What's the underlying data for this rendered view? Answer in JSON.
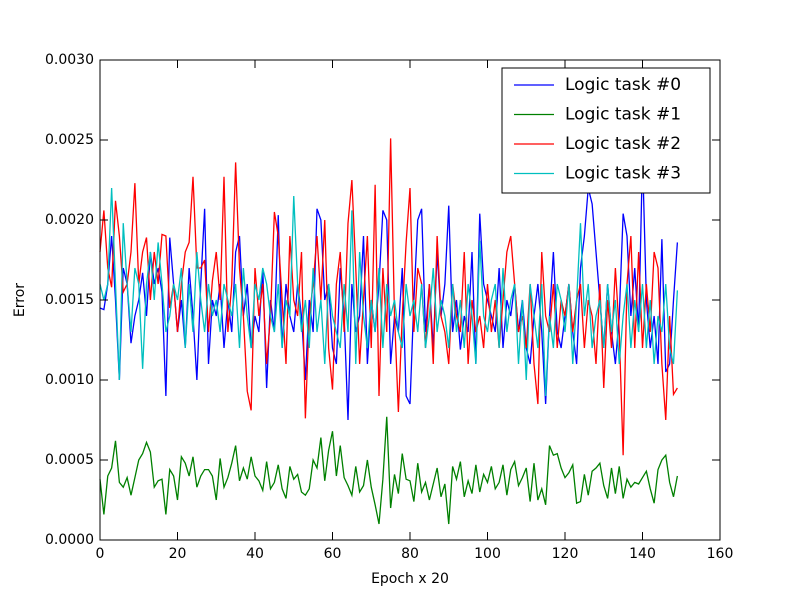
{
  "chart_data": {
    "type": "line",
    "xlabel": "Epoch x 20",
    "ylabel": "Error",
    "x": [
      0,
      1,
      2,
      3,
      4,
      5,
      6,
      7,
      8,
      9,
      10,
      11,
      12,
      13,
      14,
      15,
      16,
      17,
      18,
      19,
      20,
      21,
      22,
      23,
      24,
      25,
      26,
      27,
      28,
      29,
      30,
      31,
      32,
      33,
      34,
      35,
      36,
      37,
      38,
      39,
      40,
      41,
      42,
      43,
      44,
      45,
      46,
      47,
      48,
      49,
      50,
      51,
      52,
      53,
      54,
      55,
      56,
      57,
      58,
      59,
      60,
      61,
      62,
      63,
      64,
      65,
      66,
      67,
      68,
      69,
      70,
      71,
      72,
      73,
      74,
      75,
      76,
      77,
      78,
      79,
      80,
      81,
      82,
      83,
      84,
      85,
      86,
      87,
      88,
      89,
      90,
      91,
      92,
      93,
      94,
      95,
      96,
      97,
      98,
      99,
      100,
      101,
      102,
      103,
      104,
      105,
      106,
      107,
      108,
      109,
      110,
      111,
      112,
      113,
      114,
      115,
      116,
      117,
      118,
      119,
      120,
      121,
      122,
      123,
      124,
      125,
      126,
      127,
      128,
      129,
      130,
      131,
      132,
      133,
      134,
      135,
      136,
      137,
      138,
      139,
      140,
      141,
      142,
      143,
      144,
      145,
      146,
      147,
      148,
      149
    ],
    "series": [
      {
        "name": "Logic task #0",
        "color": "#0000ff",
        "values": [
          0.00145,
          0.00144,
          0.0016,
          0.0019,
          0.0015,
          0.001,
          0.0017,
          0.0016,
          0.00123,
          0.0014,
          0.0015,
          0.00167,
          0.0014,
          0.0018,
          0.0016,
          0.0017,
          0.00155,
          0.0009,
          0.00189,
          0.0016,
          0.0013,
          0.0015,
          0.0012,
          0.0017,
          0.0014,
          0.001,
          0.0016,
          0.00207,
          0.0011,
          0.0015,
          0.0014,
          0.0016,
          0.0012,
          0.0015,
          0.0013,
          0.0018,
          0.0019,
          0.0014,
          0.0016,
          0.0012,
          0.0014,
          0.0013,
          0.0017,
          0.00095,
          0.0015,
          0.0013,
          0.00203,
          0.0012,
          0.0016,
          0.0014,
          0.0013,
          0.0016,
          0.0014,
          0.001,
          0.0015,
          0.0013,
          0.00207,
          0.002,
          0.0015,
          0.0016,
          0.0012,
          0.0011,
          0.0017,
          0.0014,
          0.00075,
          0.0016,
          0.0013,
          0.0014,
          0.0019,
          0.0011,
          0.0015,
          0.0013,
          0.0016,
          0.00206,
          0.002,
          0.0011,
          0.0014,
          0.0013,
          0.0017,
          0.0009,
          0.00085,
          0.0015,
          0.002,
          0.00207,
          0.0013,
          0.0016,
          0.0012,
          0.0018,
          0.0014,
          0.0016,
          0.00209,
          0.0013,
          0.0015,
          0.00119,
          0.0014,
          0.0013,
          0.0018,
          0.0011,
          0.00204,
          0.0016,
          0.0015,
          0.0014,
          0.0013,
          0.0017,
          0.0012,
          0.0015,
          0.0014,
          0.0016,
          0.0013,
          0.0015,
          0.0012,
          0.0011,
          0.0014,
          0.0016,
          0.0013,
          0.00085,
          0.0014,
          0.0018,
          0.0013,
          0.0012,
          0.0014,
          0.0016,
          0.0013,
          0.0011,
          0.0017,
          0.0019,
          0.0022,
          0.0021,
          0.0018,
          0.0015,
          0.0012,
          0.0016,
          0.0013,
          0.0011,
          0.0014,
          0.00204,
          0.0019,
          0.0014,
          0.0017,
          0.0013,
          0.0024,
          0.0015,
          0.0012,
          0.0014,
          0.0011,
          0.00188,
          0.00105,
          0.0011,
          0.0015,
          0.00186
        ]
      },
      {
        "name": "Logic task #1",
        "color": "#008000",
        "values": [
          0.00038,
          0.00016,
          0.0004,
          0.00045,
          0.00062,
          0.00036,
          0.00033,
          0.00039,
          0.00028,
          0.00039,
          0.0005,
          0.00054,
          0.00061,
          0.00055,
          0.00033,
          0.00037,
          0.00038,
          0.00016,
          0.00044,
          0.0004,
          0.00025,
          0.00052,
          0.00048,
          0.0004,
          0.00052,
          0.00033,
          0.0004,
          0.00044,
          0.00044,
          0.0004,
          0.00025,
          0.00051,
          0.00033,
          0.00039,
          0.00048,
          0.00059,
          0.00037,
          0.00045,
          0.00038,
          0.00052,
          0.0004,
          0.00037,
          0.00031,
          0.00049,
          0.00032,
          0.00036,
          0.00047,
          0.00032,
          0.00026,
          0.00046,
          0.00038,
          0.00041,
          0.0003,
          0.00028,
          0.00032,
          0.0005,
          0.00045,
          0.00064,
          0.00037,
          0.00056,
          0.00068,
          0.0004,
          0.00059,
          0.00039,
          0.00034,
          0.00028,
          0.00046,
          0.0003,
          0.00034,
          0.0005,
          0.00033,
          0.00022,
          0.0001,
          0.00038,
          0.00077,
          0.0002,
          0.00041,
          0.00029,
          0.00054,
          0.00038,
          0.00037,
          0.00024,
          0.00048,
          0.0003,
          0.00036,
          0.00025,
          0.00035,
          0.00045,
          0.00027,
          0.00035,
          0.0001,
          0.00046,
          0.00038,
          0.00049,
          0.00027,
          0.00037,
          0.00029,
          0.00047,
          0.0003,
          0.00041,
          0.00036,
          0.00046,
          0.00032,
          0.00036,
          0.00047,
          0.00028,
          0.00044,
          0.00049,
          0.00034,
          0.00039,
          0.00045,
          0.00024,
          0.00048,
          0.00025,
          0.00032,
          0.00022,
          0.00059,
          0.00053,
          0.00054,
          0.00045,
          0.00039,
          0.00042,
          0.00047,
          0.00023,
          0.00024,
          0.00041,
          0.00028,
          0.00043,
          0.00045,
          0.00048,
          0.00034,
          0.00026,
          0.00045,
          0.00029,
          0.00046,
          0.00026,
          0.00038,
          0.00033,
          0.00036,
          0.00035,
          0.00039,
          0.00043,
          0.00032,
          0.00023,
          0.00044,
          0.0005,
          0.00053,
          0.00036,
          0.00027,
          0.0004
        ]
      },
      {
        "name": "Logic task #2",
        "color": "#ff0000",
        "values": [
          0.0018,
          0.00206,
          0.0017,
          0.00158,
          0.00212,
          0.0019,
          0.00155,
          0.0016,
          0.0018,
          0.00223,
          0.0016,
          0.0018,
          0.00189,
          0.0015,
          0.0018,
          0.0016,
          0.00191,
          0.0019,
          0.00145,
          0.0016,
          0.0013,
          0.0016,
          0.0018,
          0.00186,
          0.00227,
          0.0017,
          0.0017,
          0.00175,
          0.0013,
          0.00162,
          0.0018,
          0.0015,
          0.00227,
          0.0013,
          0.0016,
          0.00236,
          0.0017,
          0.0014,
          0.00093,
          0.00081,
          0.0017,
          0.0014,
          0.0016,
          0.0011,
          0.0014,
          0.00205,
          0.0019,
          0.0015,
          0.0011,
          0.0019,
          0.0015,
          0.0014,
          0.0018,
          0.00076,
          0.0014,
          0.0016,
          0.0019,
          0.0015,
          0.002,
          0.0012,
          0.00094,
          0.0016,
          0.0018,
          0.0013,
          0.00198,
          0.00225,
          0.0017,
          0.0011,
          0.0015,
          0.0019,
          0.0012,
          0.00222,
          0.0009,
          0.0017,
          0.0013,
          0.00251,
          0.0014,
          0.0008,
          0.0014,
          0.00186,
          0.0022,
          0.0013,
          0.0017,
          0.0016,
          0.0012,
          0.0016,
          0.0011,
          0.0019,
          0.0014,
          0.0013,
          0.0011,
          0.0016,
          0.0014,
          0.0013,
          0.0018,
          0.0011,
          0.0015,
          0.0013,
          0.0014,
          0.0012,
          0.0016,
          0.0013,
          0.0015,
          0.0012,
          0.0015,
          0.0018,
          0.0019,
          0.0016,
          0.0013,
          0.0014,
          0.0012,
          0.0016,
          0.0011,
          0.00085,
          0.0018,
          0.0014,
          0.0013,
          0.0016,
          0.0012,
          0.0015,
          0.0014,
          0.0016,
          0.0013,
          0.0015,
          0.0016,
          0.0012,
          0.0015,
          0.0014,
          0.0011,
          0.0016,
          0.00095,
          0.0015,
          0.0012,
          0.0017,
          0.0013,
          0.00053,
          0.0016,
          0.0019,
          0.0012,
          0.0018,
          0.0012,
          0.0016,
          0.0013,
          0.0018,
          0.0017,
          0.0011,
          0.00075,
          0.0014,
          0.00091,
          0.00095
        ]
      },
      {
        "name": "Logic task #3",
        "color": "#00bfbf",
        "values": [
          0.0016,
          0.0015,
          0.0016,
          0.0022,
          0.0016,
          0.001,
          0.00198,
          0.0016,
          0.0013,
          0.0017,
          0.0016,
          0.00107,
          0.0016,
          0.0018,
          0.0015,
          0.00186,
          0.0016,
          0.0013,
          0.0014,
          0.0016,
          0.0015,
          0.0017,
          0.0012,
          0.0016,
          0.0013,
          0.0018,
          0.0015,
          0.0013,
          0.0016,
          0.0014,
          0.0015,
          0.0013,
          0.0016,
          0.0015,
          0.0014,
          0.0016,
          0.0012,
          0.0017,
          0.0014,
          0.0012,
          0.0016,
          0.0015,
          0.0017,
          0.0016,
          0.0014,
          0.0013,
          0.0016,
          0.0012,
          0.0015,
          0.0014,
          0.00215,
          0.0016,
          0.0013,
          0.0015,
          0.0012,
          0.0017,
          0.0013,
          0.0015,
          0.0011,
          0.0016,
          0.0014,
          0.0013,
          0.0012,
          0.0016,
          0.0013,
          0.00206,
          0.0011,
          0.0018,
          0.0014,
          0.0012,
          0.0015,
          0.0013,
          0.0017,
          0.0012,
          0.0016,
          0.0014,
          0.0015,
          0.0013,
          0.0012,
          0.0016,
          0.0014,
          0.0015,
          0.0013,
          0.0016,
          0.0012,
          0.0014,
          0.0017,
          0.0013,
          0.0015,
          0.0014,
          0.0012,
          0.0016,
          0.0013,
          0.0015,
          0.0012,
          0.0016,
          0.0014,
          0.0011,
          0.00187,
          0.0014,
          0.0013,
          0.0015,
          0.0016,
          0.0012,
          0.0017,
          0.0013,
          0.0015,
          0.0016,
          0.0011,
          0.0015,
          0.001,
          0.0016,
          0.0014,
          0.0012,
          0.0016,
          0.0009,
          0.0014,
          0.0012,
          0.0016,
          0.0015,
          0.0013,
          0.0016,
          0.0011,
          0.0015,
          0.00198,
          0.0014,
          0.0016,
          0.0012,
          0.0014,
          0.0015,
          0.0012,
          0.0016,
          0.0013,
          0.0015,
          0.0011,
          0.0014,
          0.0016,
          0.0012,
          0.0015,
          0.0013,
          0.0016,
          0.0012,
          0.0015,
          0.0011,
          0.0014,
          0.0013,
          0.0016,
          0.0012,
          0.0011,
          0.00156
        ]
      }
    ],
    "xlim": [
      0,
      160
    ],
    "xticks": [
      0,
      20,
      40,
      60,
      80,
      100,
      120,
      140,
      160
    ],
    "ylim": [
      0,
      0.003
    ],
    "yticks": [
      {
        "value": 0,
        "label": "0.0000"
      },
      {
        "value": 0.0005,
        "label": "0.0005"
      },
      {
        "value": 0.001,
        "label": "0.0010"
      },
      {
        "value": 0.0015,
        "label": "0.0015"
      },
      {
        "value": 0.002,
        "label": "0.0020"
      },
      {
        "value": 0.0025,
        "label": "0.0025"
      },
      {
        "value": 0.003,
        "label": "0.0030"
      }
    ],
    "grid": false,
    "legend": "upper-right"
  }
}
